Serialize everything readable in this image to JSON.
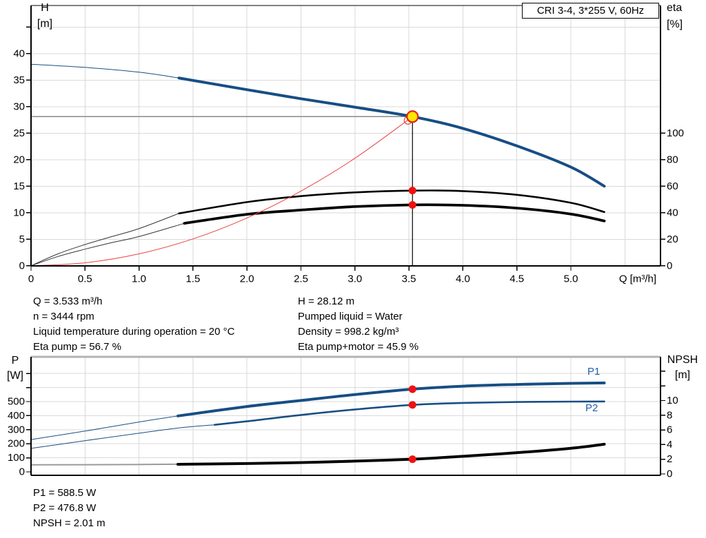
{
  "title_box": "CRI 3-4, 3*255 V, 60Hz",
  "colors": {
    "curve_blue": "#174e84",
    "label_blue": "#1d5fa8",
    "system_red": "#e8413c",
    "dot_red": "#ee1111",
    "marker_yellow": "#ffe600",
    "marker_ring_red": "#e32219",
    "grid": "#d9d9d9",
    "duty_h_line": "#888888",
    "npsh_thin": "#9a9a9a",
    "eta_thin": "#333333"
  },
  "annotations": {
    "left": [
      "Q = 3.533 m³/h",
      "n = 3444 rpm",
      "Liquid temperature during operation = 20 °C",
      "Eta pump = 56.7 %"
    ],
    "right": [
      "H = 28.12 m",
      "Pumped liquid = Water",
      "Density = 998.2 kg/m³",
      "Eta pump+motor = 45.9 %"
    ],
    "bottom": [
      "P1 = 588.5 W",
      "P2 = 476.8 W",
      "NPSH = 2.01 m"
    ]
  },
  "chart_data": [
    {
      "id": "hq",
      "type": "line",
      "title": "CRI 3-4, 3*255 V, 60Hz",
      "x_label": "Q [m³/h]",
      "x_ticks": [
        "0",
        "0.5",
        "1.0",
        "1.5",
        "2.0",
        "2.5",
        "3.0",
        "3.5",
        "4.0",
        "4.5",
        "5.0"
      ],
      "x_range": [
        0,
        5.83
      ],
      "grid": true,
      "legend_position": "none",
      "y_left": {
        "label": "H",
        "unit": "[m]",
        "ticks": [
          0,
          5,
          10,
          15,
          20,
          25,
          30,
          35,
          40
        ],
        "minor_ticks": [
          45
        ],
        "range": [
          0,
          49
        ]
      },
      "y_right": {
        "label": "eta",
        "unit": "[%]",
        "ticks": [
          0,
          20,
          40,
          60,
          80,
          100
        ],
        "minor_ticks": [],
        "range": [
          0,
          196
        ]
      },
      "series": [
        {
          "name": "pump-curve",
          "axis": "left",
          "color": "#174e84",
          "width": 4,
          "thin_width": 1,
          "thin_color": "#174e84",
          "split": 1.37,
          "points": [
            [
              0,
              38
            ],
            [
              0.5,
              37.4
            ],
            [
              1,
              36.5
            ],
            [
              1.37,
              35.4
            ],
            [
              2,
              33.2
            ],
            [
              2.5,
              31.5
            ],
            [
              3,
              29.9
            ],
            [
              3.533,
              28.12
            ],
            [
              4,
              25.9
            ],
            [
              4.5,
              22.6
            ],
            [
              5,
              18.6
            ],
            [
              5.31,
              15
            ]
          ]
        },
        {
          "name": "eta-pump-curve",
          "axis": "right",
          "color": "#000000",
          "width": 2.6,
          "thin_width": 1,
          "thin_color": "#333333",
          "split": 1.37,
          "points": [
            [
              0,
              0
            ],
            [
              0.25,
              9
            ],
            [
              0.5,
              16
            ],
            [
              0.75,
              22
            ],
            [
              1,
              28
            ],
            [
              1.37,
              39.5
            ],
            [
              2,
              48
            ],
            [
              2.5,
              52.5
            ],
            [
              3,
              55.3
            ],
            [
              3.533,
              56.7
            ],
            [
              4,
              56.3
            ],
            [
              4.5,
              53.5
            ],
            [
              5,
              47.5
            ],
            [
              5.31,
              40.5
            ]
          ]
        },
        {
          "name": "eta-pump-motor-curve",
          "axis": "right",
          "color": "#000000",
          "width": 3.8,
          "thin_width": 1,
          "thin_color": "#333333",
          "split": 1.42,
          "points": [
            [
              0,
              0
            ],
            [
              0.25,
              7
            ],
            [
              0.5,
              12.5
            ],
            [
              0.75,
              17.5
            ],
            [
              1,
              22
            ],
            [
              1.42,
              32
            ],
            [
              2,
              38.8
            ],
            [
              2.5,
              42
            ],
            [
              3,
              44.6
            ],
            [
              3.533,
              45.9
            ],
            [
              4,
              45.6
            ],
            [
              4.5,
              43.5
            ],
            [
              5,
              39
            ],
            [
              5.31,
              33.8
            ]
          ]
        },
        {
          "name": "system-curve",
          "axis": "left",
          "color": "#e8413c",
          "width": 1,
          "points": [
            [
              0,
              0
            ],
            [
              0.5,
              0.56
            ],
            [
              1,
              2.25
            ],
            [
              1.5,
              5.07
            ],
            [
              2,
              9.01
            ],
            [
              2.5,
              14.08
            ],
            [
              3,
              20.27
            ],
            [
              3.533,
              28.12
            ]
          ]
        }
      ],
      "duty_point": {
        "Q": 3.533,
        "H": 28.12,
        "eta_pump": 56.7,
        "eta_pump_motor": 45.9
      }
    },
    {
      "id": "p-npsh",
      "type": "line",
      "x_label": "",
      "x_ticks": [],
      "x_range": [
        0,
        5.83
      ],
      "grid": true,
      "y_left": {
        "label": "P",
        "unit": "[W]",
        "ticks": [
          0,
          100,
          200,
          300,
          400,
          500
        ],
        "minor_ticks": [
          600,
          700
        ],
        "range": [
          0,
          820
        ]
      },
      "y_right": {
        "label": "NPSH",
        "unit": "[m]",
        "ticks": [
          0,
          2,
          4,
          6,
          8,
          10
        ],
        "minor_ticks": [
          12,
          14
        ],
        "range": [
          0,
          16
        ]
      },
      "curve_labels": [
        {
          "text": "P1"
        },
        {
          "text": "P2"
        }
      ],
      "series": [
        {
          "name": "p1-curve",
          "axis": "left",
          "color": "#174e84",
          "width": 4,
          "thin_width": 1,
          "thin_color": "#174e84",
          "split": 1.36,
          "points": [
            [
              0,
              230
            ],
            [
              0.5,
              290
            ],
            [
              1,
              355
            ],
            [
              1.36,
              398
            ],
            [
              2,
              465
            ],
            [
              2.5,
              508
            ],
            [
              3,
              550
            ],
            [
              3.533,
              588.5
            ],
            [
              4,
              610
            ],
            [
              4.5,
              622
            ],
            [
              5,
              630
            ],
            [
              5.31,
              633
            ]
          ]
        },
        {
          "name": "p2-curve",
          "axis": "left",
          "color": "#174e84",
          "width": 2.6,
          "thin_width": 1,
          "thin_color": "#174e84",
          "split": 1.7,
          "points": [
            [
              0,
              167
            ],
            [
              0.5,
              222
            ],
            [
              1,
              275
            ],
            [
              1.36,
              312
            ],
            [
              1.7,
              335
            ],
            [
              2,
              360
            ],
            [
              2.5,
              405
            ],
            [
              3,
              444
            ],
            [
              3.533,
              476.8
            ],
            [
              4,
              490
            ],
            [
              4.5,
              497
            ],
            [
              5,
              500
            ],
            [
              5.31,
              501
            ]
          ]
        },
        {
          "name": "npsh-curve",
          "axis": "right",
          "color": "#000000",
          "width": 4,
          "thin_width": 2,
          "thin_color": "#9a9a9a",
          "split": 1.36,
          "points": [
            [
              0,
              1.25
            ],
            [
              0.7,
              1.27
            ],
            [
              1.36,
              1.32
            ],
            [
              2,
              1.42
            ],
            [
              2.5,
              1.55
            ],
            [
              3,
              1.75
            ],
            [
              3.533,
              2.01
            ],
            [
              4,
              2.4
            ],
            [
              4.5,
              2.9
            ],
            [
              5,
              3.5
            ],
            [
              5.31,
              4.05
            ]
          ]
        }
      ],
      "duty_point": {
        "Q": 3.533,
        "P1": 588.5,
        "P2": 476.8,
        "NPSH": 2.01
      }
    }
  ]
}
